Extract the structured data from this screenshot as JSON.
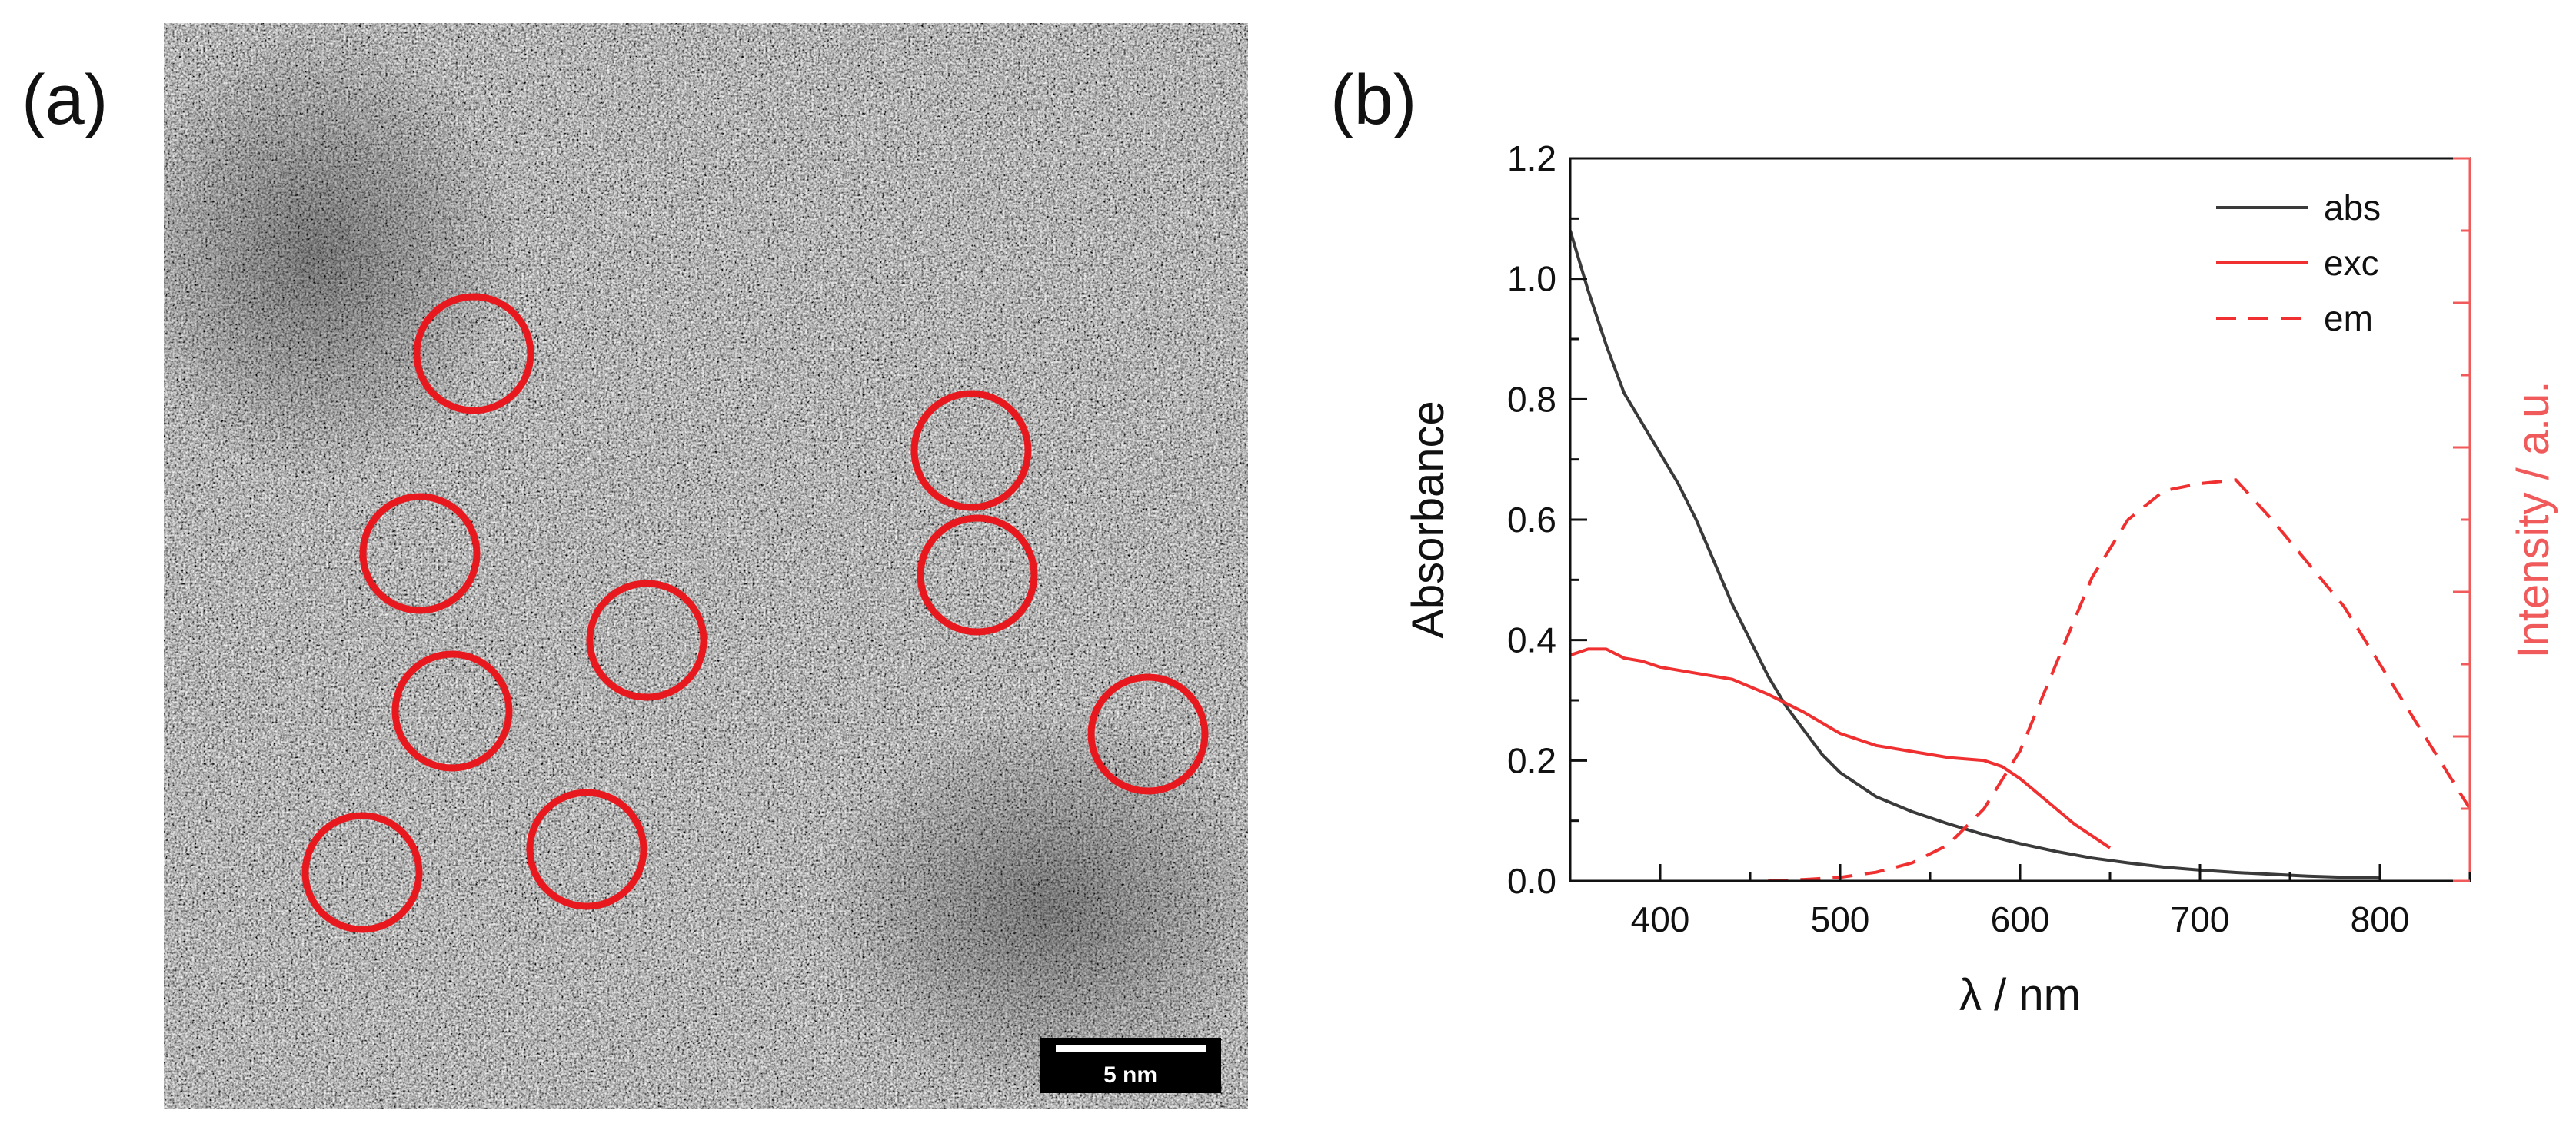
{
  "panels": {
    "a_label": "(a)",
    "b_label": "(b)"
  },
  "tem": {
    "scale_bar_label": "5 nm",
    "circle_color": "#e8191e",
    "particle_count": 9
  },
  "chart_data": {
    "type": "line",
    "title": "",
    "xlabel": "λ / nm",
    "ylabel": "Absorbance",
    "y2label": "Intensity / a.u.",
    "xlim": [
      350,
      850
    ],
    "ylim": [
      0,
      1.2
    ],
    "y2lim": [
      0,
      1
    ],
    "x_ticks": [
      400,
      500,
      600,
      700,
      800
    ],
    "y_ticks": [
      0.0,
      0.2,
      0.4,
      0.6,
      0.8,
      1.0,
      1.2
    ],
    "y_tick_labels": [
      "0.0",
      "0.2",
      "0.4",
      "0.6",
      "0.8",
      "1.0",
      "1.2"
    ],
    "y2_right_axis_color": "#f05a5a",
    "legend": "top-right",
    "grid": false,
    "series": [
      {
        "name": "abs",
        "axis": "left",
        "style": "solid",
        "color": "#3a3a3a",
        "x": [
          350,
          360,
          370,
          380,
          390,
          400,
          410,
          420,
          430,
          440,
          450,
          460,
          470,
          480,
          490,
          500,
          520,
          540,
          560,
          580,
          600,
          620,
          640,
          660,
          680,
          700,
          720,
          740,
          760,
          780,
          800
        ],
        "y": [
          1.08,
          0.98,
          0.89,
          0.81,
          0.76,
          0.71,
          0.66,
          0.6,
          0.53,
          0.46,
          0.4,
          0.34,
          0.29,
          0.25,
          0.21,
          0.18,
          0.14,
          0.115,
          0.095,
          0.077,
          0.062,
          0.049,
          0.038,
          0.03,
          0.023,
          0.018,
          0.014,
          0.011,
          0.008,
          0.006,
          0.005
        ]
      },
      {
        "name": "exc",
        "axis": "left",
        "style": "solid",
        "color": "#f03030",
        "x": [
          350,
          360,
          370,
          380,
          390,
          400,
          420,
          440,
          460,
          480,
          500,
          520,
          540,
          560,
          580,
          590,
          600,
          610,
          620,
          630,
          640,
          650
        ],
        "y": [
          0.375,
          0.385,
          0.385,
          0.37,
          0.365,
          0.355,
          0.345,
          0.335,
          0.31,
          0.28,
          0.245,
          0.225,
          0.215,
          0.205,
          0.2,
          0.19,
          0.17,
          0.145,
          0.12,
          0.095,
          0.075,
          0.055
        ]
      },
      {
        "name": "em",
        "axis": "right",
        "style": "dashed",
        "color": "#f03030",
        "x": [
          460,
          480,
          500,
          520,
          540,
          560,
          580,
          600,
          620,
          640,
          660,
          680,
          700,
          720,
          740,
          760,
          780,
          800,
          820,
          840,
          850
        ],
        "y": [
          0.0,
          0.002,
          0.005,
          0.012,
          0.025,
          0.05,
          0.1,
          0.18,
          0.3,
          0.42,
          0.5,
          0.54,
          0.55,
          0.555,
          0.5,
          0.44,
          0.38,
          0.3,
          0.22,
          0.14,
          0.1
        ]
      }
    ]
  }
}
